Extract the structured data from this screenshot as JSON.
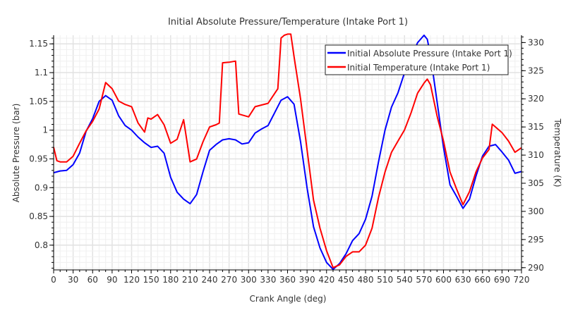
{
  "chart_data": {
    "type": "line",
    "title": "Initial Absolute Pressure/Temperature (Intake Port 1)",
    "xlabel": "Crank Angle  (deg)",
    "ylabel": "Absolute Pressure  (bar)",
    "y2label": "Temperature  (K)",
    "xlim": [
      0,
      720
    ],
    "ylim": [
      0.757,
      1.165
    ],
    "y2lim": [
      289.6,
      331.3
    ],
    "xticks": [
      0,
      30,
      60,
      90,
      120,
      150,
      180,
      210,
      240,
      270,
      300,
      330,
      360,
      390,
      420,
      450,
      480,
      510,
      540,
      570,
      600,
      630,
      660,
      690,
      720
    ],
    "yticks": [
      0.8,
      0.85,
      0.9,
      0.95,
      1,
      1.05,
      1.1,
      1.15
    ],
    "ytick_labels": [
      "0.8",
      "0.85",
      "0.9",
      "0.95",
      "1",
      "1.05",
      "1.1",
      "1.15"
    ],
    "y2ticks": [
      290,
      295,
      300,
      305,
      310,
      315,
      320,
      325,
      330
    ],
    "grid": true,
    "legend_position": "top-right",
    "series": [
      {
        "name": "Initial Absolute Pressure (Intake Port 1)",
        "color": "#0000ff",
        "axis": "left",
        "x": [
          0,
          10,
          20,
          30,
          40,
          50,
          60,
          70,
          80,
          90,
          100,
          110,
          120,
          130,
          140,
          150,
          160,
          170,
          180,
          190,
          200,
          210,
          220,
          230,
          240,
          250,
          260,
          270,
          280,
          290,
          300,
          310,
          320,
          330,
          340,
          350,
          360,
          370,
          380,
          390,
          400,
          410,
          420,
          430,
          440,
          450,
          460,
          470,
          480,
          490,
          500,
          510,
          520,
          530,
          540,
          550,
          560,
          570,
          575,
          580,
          590,
          600,
          610,
          620,
          630,
          640,
          650,
          660,
          670,
          680,
          690,
          700,
          710,
          720
        ],
        "values": [
          0.926,
          0.929,
          0.93,
          0.94,
          0.96,
          0.998,
          1.02,
          1.05,
          1.06,
          1.052,
          1.025,
          1.008,
          1.0,
          0.988,
          0.978,
          0.97,
          0.972,
          0.96,
          0.918,
          0.892,
          0.88,
          0.872,
          0.888,
          0.928,
          0.965,
          0.975,
          0.983,
          0.985,
          0.983,
          0.976,
          0.978,
          0.995,
          1.002,
          1.008,
          1.03,
          1.052,
          1.058,
          1.045,
          0.98,
          0.9,
          0.832,
          0.795,
          0.77,
          0.758,
          0.768,
          0.785,
          0.808,
          0.82,
          0.845,
          0.885,
          0.945,
          1.0,
          1.04,
          1.065,
          1.1,
          1.125,
          1.152,
          1.165,
          1.158,
          1.13,
          1.05,
          0.97,
          0.905,
          0.885,
          0.864,
          0.88,
          0.92,
          0.955,
          0.972,
          0.975,
          0.962,
          0.948,
          0.925,
          0.928
        ]
      },
      {
        "name": "Initial Temperature (Intake Port 1)",
        "color": "#ff0000",
        "axis": "right",
        "x": [
          0,
          5,
          10,
          20,
          30,
          40,
          50,
          60,
          70,
          80,
          90,
          100,
          110,
          120,
          130,
          140,
          145,
          150,
          160,
          170,
          180,
          190,
          200,
          210,
          220,
          230,
          240,
          250,
          255,
          260,
          270,
          280,
          285,
          300,
          310,
          320,
          330,
          345,
          350,
          355,
          360,
          365,
          370,
          380,
          390,
          400,
          410,
          420,
          430,
          440,
          450,
          460,
          470,
          480,
          490,
          500,
          510,
          520,
          530,
          540,
          550,
          560,
          570,
          575,
          580,
          590,
          600,
          610,
          620,
          630,
          640,
          650,
          660,
          670,
          675,
          690,
          700,
          710,
          720
        ],
        "values": [
          311.4,
          309.0,
          308.8,
          308.8,
          309.8,
          312.1,
          314.3,
          316.0,
          318.2,
          322.9,
          321.8,
          319.6,
          319.0,
          318.6,
          315.7,
          314.1,
          316.6,
          316.4,
          317.2,
          315.4,
          312.1,
          312.8,
          316.3,
          308.8,
          309.3,
          312.4,
          315.0,
          315.4,
          315.7,
          326.4,
          326.5,
          326.7,
          317.3,
          316.8,
          318.6,
          318.9,
          319.2,
          321.8,
          330.8,
          331.3,
          331.5,
          331.5,
          327.5,
          320,
          311,
          302,
          297,
          293,
          290,
          290.5,
          292,
          292.8,
          292.8,
          294,
          297,
          302.5,
          307,
          310.5,
          312.5,
          314.5,
          317.5,
          321,
          322.8,
          323.5,
          322.5,
          317,
          312.5,
          307,
          304,
          301.2,
          303.5,
          307,
          309.5,
          311,
          315.5,
          314,
          312.5,
          310.5,
          311.3
        ]
      }
    ]
  }
}
